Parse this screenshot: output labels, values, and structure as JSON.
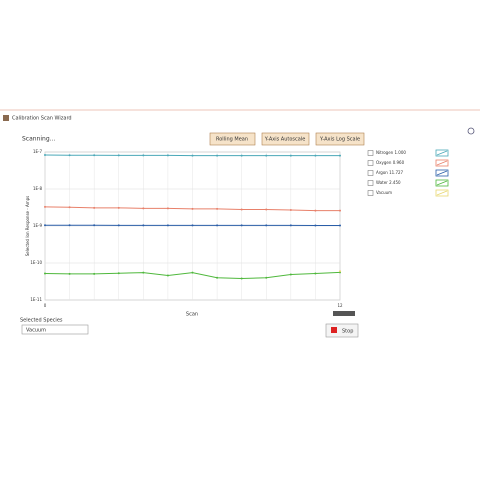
{
  "window": {
    "title": "Calibration Scan Wizard",
    "status": "Scanning...",
    "buttons": [
      "Rolling Mean",
      "Y-Axis Autoscale",
      "Y-Axis Log Scale"
    ],
    "species_label": "Selected Species",
    "species_value": "Vacuum",
    "stop": "Stop"
  },
  "chart_data": {
    "type": "line",
    "x_label": "Scan",
    "y_label": "Selected Ion Response - Amps",
    "x": [
      0,
      1,
      2,
      3,
      4,
      5,
      6,
      7,
      8,
      9,
      10,
      11,
      12
    ],
    "xlim": [
      0,
      12
    ],
    "xticks": [
      0,
      12
    ],
    "ylim": [
      1e-11,
      1e-07
    ],
    "log_y": true,
    "grid": true,
    "yticks": [
      {
        "value": 1e-07,
        "label": "1E-7"
      },
      {
        "value": 1e-08,
        "label": "1E-8"
      },
      {
        "value": 1e-09,
        "label": "1E-9"
      },
      {
        "value": 1e-10,
        "label": "1E-10"
      },
      {
        "value": 1e-11,
        "label": "1E-11"
      }
    ],
    "series": [
      {
        "name": "Nitrogen 1.000",
        "color": "#4aa8b8",
        "values": [
          8.3e-08,
          8.2e-08,
          8.2e-08,
          8.1e-08,
          8.1e-08,
          8.1e-08,
          8e-08,
          8e-08,
          8e-08,
          8e-08,
          8e-08,
          8e-08,
          8e-08
        ]
      },
      {
        "name": "Oxygen 0.960",
        "color": "#e8806a",
        "values": [
          3.3e-09,
          3.2e-09,
          3.1e-09,
          3.1e-09,
          3e-09,
          3e-09,
          2.9e-09,
          2.9e-09,
          2.8e-09,
          2.8e-09,
          2.7e-09,
          2.6e-09,
          2.6e-09
        ]
      },
      {
        "name": "Argon 11.727",
        "color": "#2a5ea8",
        "values": [
          1.05e-09,
          1.05e-09,
          1.05e-09,
          1.04e-09,
          1.04e-09,
          1.04e-09,
          1.04e-09,
          1.04e-09,
          1.04e-09,
          1.04e-09,
          1.04e-09,
          1.03e-09,
          1.03e-09
        ]
      },
      {
        "name": "Water 2.450",
        "color": "#4fb83c",
        "values": [
          5.2e-11,
          5.1e-11,
          5.1e-11,
          5.3e-11,
          5.5e-11,
          4.6e-11,
          5.5e-11,
          4e-11,
          3.8e-11,
          4e-11,
          4.9e-11,
          5.2e-11,
          5.6e-11
        ]
      },
      {
        "name": "Vacuum",
        "color": "#e8d870",
        "values": [
          null,
          null,
          null,
          null,
          null,
          null,
          null,
          null,
          null,
          null,
          null,
          null,
          6e-11
        ]
      }
    ]
  }
}
